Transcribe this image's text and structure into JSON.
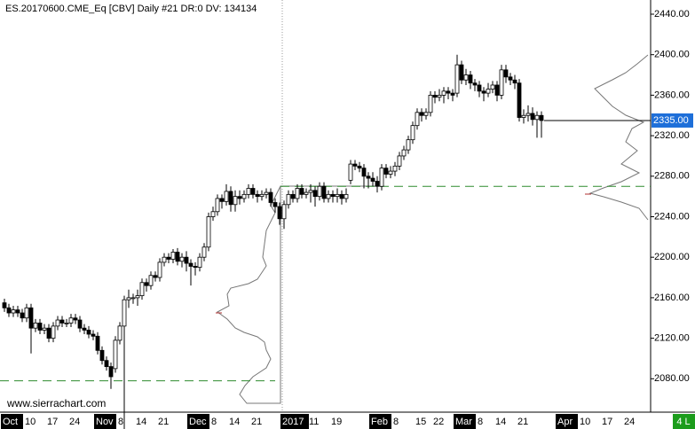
{
  "chart_data": {
    "type": "candlestick",
    "title": "ES.20170600.CME_Eq [CBV]  Daily  #21 DR:0 DV: 134134",
    "watermark": "www.sierrachart.com",
    "status_badge": "4 L",
    "categories": [
      "Oct",
      null,
      null,
      null,
      null,
      "10",
      null,
      null,
      null,
      null,
      "17",
      null,
      null,
      null,
      null,
      "24",
      null,
      null,
      null,
      null,
      null,
      "Nov",
      null,
      null,
      null,
      null,
      "8",
      null,
      null,
      null,
      "14",
      null,
      null,
      null,
      null,
      "21",
      null,
      null,
      null,
      null,
      null,
      null,
      "Dec",
      null,
      null,
      null,
      null,
      "8",
      null,
      null,
      null,
      "14",
      null,
      null,
      null,
      null,
      "21",
      null,
      null,
      null,
      null,
      null,
      null,
      "2017",
      null,
      null,
      null,
      null,
      null,
      "11",
      null,
      null,
      null,
      null,
      "19",
      null,
      null,
      null,
      null,
      null,
      null,
      null,
      null,
      "Feb",
      null,
      null,
      null,
      null,
      "8",
      null,
      null,
      null,
      null,
      "15",
      null,
      null,
      null,
      "22",
      null,
      null,
      null,
      null,
      "Mar",
      null,
      null,
      null,
      null,
      "8",
      null,
      null,
      null,
      "14",
      null,
      null,
      null,
      null,
      "21",
      null,
      null,
      null,
      null,
      null,
      null,
      null,
      null,
      "Apr",
      null,
      null,
      null,
      null,
      "10",
      null,
      null,
      null,
      null,
      "17",
      null,
      null,
      null,
      null,
      "24",
      null,
      null,
      null,
      null
    ],
    "open": [
      2155,
      2150,
      2145,
      2148,
      2145,
      2140,
      2150,
      2130,
      2135,
      2128,
      2130,
      2120,
      2132,
      2138,
      2135,
      2135,
      2140,
      2138,
      2130,
      2128,
      2124,
      2122,
      2108,
      2098,
      2092,
      2090,
      2118,
      2132,
      2158,
      2160,
      2160,
      2162,
      2175,
      2172,
      2182,
      2180,
      2195,
      2200,
      2198,
      2205,
      2196,
      2200,
      2194,
      2191,
      2190,
      2200,
      2210,
      2240,
      2245,
      2258,
      2255,
      2265,
      2252,
      2260,
      2258,
      2262,
      2268,
      2262,
      2260,
      2262,
      2264,
      2254,
      2250,
      2238,
      2252,
      2262,
      2258,
      2268,
      2262,
      2264,
      2266,
      2260,
      2270,
      2258,
      2262,
      2260,
      2262,
      2258,
      2276,
      2292,
      2290,
      2288,
      2280,
      2278,
      2275,
      2270,
      2288,
      2282,
      2285,
      2290,
      2300,
      2306,
      2316,
      2330,
      2343,
      2340,
      2343,
      2360,
      2358,
      2360,
      2364,
      2362,
      2362,
      2390,
      2375,
      2380,
      2372,
      2370,
      2364,
      2362,
      2366,
      2370,
      2360,
      2385,
      2378,
      2375,
      2372,
      2338,
      2340,
      2342,
      2336,
      2340,
      null,
      null,
      null,
      null,
      null,
      null,
      null,
      null,
      null,
      null,
      null,
      null,
      null,
      null,
      null,
      null,
      null,
      null,
      null,
      null,
      null,
      null,
      null
    ],
    "high": [
      2159,
      2154,
      2152,
      2152,
      2149,
      2154,
      2154,
      2139,
      2139,
      2134,
      2134,
      2136,
      2142,
      2142,
      2139,
      2144,
      2144,
      2142,
      2134,
      2132,
      2128,
      2126,
      2112,
      2102,
      2096,
      2122,
      2136,
      2162,
      2168,
      2164,
      2168,
      2179,
      2179,
      2186,
      2186,
      2199,
      2204,
      2204,
      2208,
      2209,
      2204,
      2206,
      2198,
      2195,
      2204,
      2214,
      2244,
      2250,
      2262,
      2262,
      2272,
      2270,
      2266,
      2266,
      2266,
      2272,
      2272,
      2266,
      2266,
      2268,
      2268,
      2258,
      2254,
      2256,
      2266,
      2266,
      2272,
      2272,
      2268,
      2272,
      2270,
      2274,
      2274,
      2266,
      2266,
      2268,
      2266,
      2268,
      2296,
      2296,
      2294,
      2292,
      2284,
      2284,
      2280,
      2292,
      2292,
      2290,
      2294,
      2304,
      2310,
      2320,
      2334,
      2347,
      2347,
      2347,
      2364,
      2364,
      2366,
      2368,
      2368,
      2366,
      2400,
      2394,
      2386,
      2384,
      2376,
      2374,
      2368,
      2372,
      2374,
      2374,
      2390,
      2390,
      2382,
      2380,
      2376,
      2346,
      2350,
      2348,
      2344,
      2344,
      null,
      null,
      null,
      null,
      null,
      null,
      null,
      null,
      null,
      null,
      null,
      null,
      null,
      null,
      null,
      null,
      null,
      null,
      null,
      null,
      null,
      null,
      null
    ],
    "low": [
      2146,
      2141,
      2141,
      2141,
      2136,
      2136,
      2105,
      2126,
      2124,
      2124,
      2116,
      2116,
      2128,
      2131,
      2131,
      2131,
      2134,
      2126,
      2124,
      2120,
      2118,
      2104,
      2094,
      2088,
      2070,
      2086,
      2114,
      2028,
      2150,
      2154,
      2152,
      2158,
      2166,
      2168,
      2176,
      2176,
      2191,
      2194,
      2194,
      2192,
      2190,
      2186,
      2172,
      2182,
      2186,
      2196,
      2206,
      2236,
      2241,
      2248,
      2251,
      2245,
      2245,
      2252,
      2254,
      2258,
      2258,
      2254,
      2256,
      2258,
      2250,
      2244,
      2232,
      2228,
      2248,
      2254,
      2254,
      2258,
      2258,
      2254,
      2250,
      2256,
      2254,
      2254,
      2254,
      2254,
      2252,
      2254,
      2272,
      2286,
      2284,
      2268,
      2268,
      2270,
      2264,
      2266,
      2278,
      2278,
      2280,
      2286,
      2296,
      2302,
      2312,
      2326,
      2334,
      2336,
      2339,
      2352,
      2354,
      2352,
      2356,
      2354,
      2358,
      2371,
      2370,
      2366,
      2364,
      2358,
      2354,
      2358,
      2362,
      2354,
      2356,
      2372,
      2370,
      2366,
      2334,
      2332,
      2334,
      2330,
      2318,
      2318,
      null,
      null,
      null,
      null,
      null,
      null,
      null,
      null,
      null,
      null,
      null,
      null,
      null,
      null,
      null,
      null,
      null,
      null,
      null,
      null,
      null,
      null,
      null
    ],
    "close": [
      2150,
      2145,
      2148,
      2145,
      2140,
      2150,
      2130,
      2135,
      2128,
      2130,
      2120,
      2132,
      2138,
      2135,
      2135,
      2140,
      2138,
      2130,
      2128,
      2124,
      2122,
      2108,
      2098,
      2092,
      2082,
      2118,
      2132,
      2158,
      2160,
      2160,
      2162,
      2175,
      2172,
      2182,
      2180,
      2195,
      2200,
      2198,
      2205,
      2196,
      2200,
      2194,
      2191,
      2190,
      2200,
      2210,
      2240,
      2245,
      2258,
      2255,
      2265,
      2252,
      2260,
      2258,
      2262,
      2268,
      2262,
      2260,
      2262,
      2264,
      2254,
      2250,
      2238,
      2252,
      2262,
      2258,
      2268,
      2262,
      2264,
      2266,
      2260,
      2270,
      2258,
      2262,
      2260,
      2262,
      2258,
      2262,
      2292,
      2290,
      2288,
      2280,
      2278,
      2275,
      2270,
      2288,
      2282,
      2285,
      2290,
      2300,
      2306,
      2316,
      2330,
      2343,
      2340,
      2343,
      2360,
      2358,
      2360,
      2364,
      2362,
      2360,
      2390,
      2375,
      2380,
      2372,
      2370,
      2364,
      2362,
      2366,
      2370,
      2360,
      2385,
      2378,
      2375,
      2372,
      2338,
      2340,
      2342,
      2336,
      2340,
      2335,
      null,
      null,
      null,
      null,
      null,
      null,
      null,
      null,
      null,
      null,
      null,
      null,
      null,
      null,
      null,
      null,
      null,
      null,
      null,
      null,
      null,
      null,
      null
    ],
    "up_color": "#ffffff",
    "down_color": "#000000",
    "ylim": [
      2047,
      2454
    ],
    "yticks": [
      {
        "value": 2080,
        "label": "2080.00"
      },
      {
        "value": 2120,
        "label": "2120.00"
      },
      {
        "value": 2160,
        "label": "2160.00"
      },
      {
        "value": 2200,
        "label": "2200.00"
      },
      {
        "value": 2240,
        "label": "2240.00"
      },
      {
        "value": 2280,
        "label": "2280.00"
      },
      {
        "value": 2320,
        "label": "2320.00"
      },
      {
        "value": 2360,
        "label": "2360.00"
      },
      {
        "value": 2400,
        "label": "2400.00"
      },
      {
        "value": 2440,
        "label": "2440.00"
      }
    ],
    "last_price": {
      "value": 2335,
      "label": "2335.00"
    },
    "hlines": [
      2078,
      2270
    ],
    "hline_color": "#2e8b2e"
  }
}
